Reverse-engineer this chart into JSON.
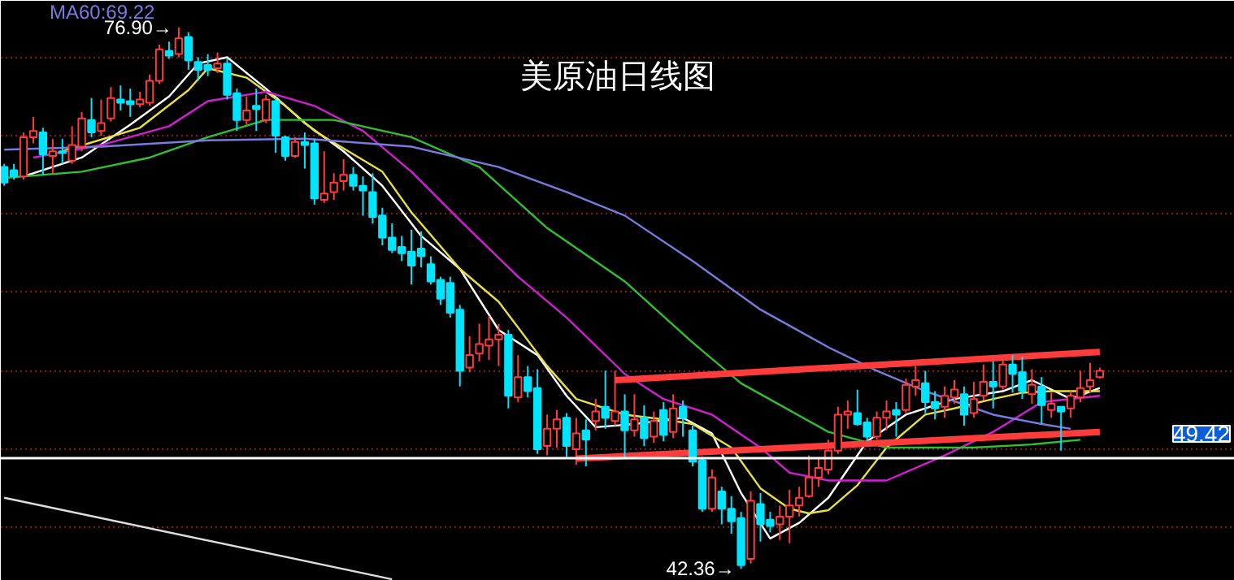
{
  "chart_data": {
    "type": "candlestick",
    "title": "美原油日线图",
    "categories": [
      null,
      null,
      null,
      null,
      null,
      null,
      null,
      null,
      null,
      null,
      null,
      null,
      null,
      null,
      null,
      null,
      null,
      null,
      null,
      null,
      null,
      null,
      null,
      null,
      null,
      null,
      null,
      null,
      null,
      null,
      null,
      null,
      null,
      null,
      null,
      null,
      null,
      null,
      null,
      null,
      null,
      null,
      null,
      null,
      null,
      null,
      null,
      null,
      null,
      null,
      null,
      null,
      null,
      null,
      null,
      null,
      null,
      null,
      null,
      null,
      null,
      null,
      null,
      null,
      null,
      null,
      null,
      null,
      null,
      null,
      null,
      null,
      null,
      null,
      null,
      null,
      null,
      null,
      null,
      null,
      null,
      null,
      null,
      null,
      null,
      null,
      null,
      null,
      null,
      null,
      null,
      null,
      null,
      null,
      null,
      null,
      null,
      null,
      null,
      null,
      null,
      null,
      null,
      null,
      null,
      null,
      null,
      null,
      null,
      null,
      null,
      null,
      null,
      null
    ],
    "ohlc": [
      [
        68.0,
        68.2,
        66.8,
        67.0
      ],
      [
        67.8,
        68.2,
        67.2,
        67.4
      ],
      [
        67.4,
        70.2,
        67.2,
        69.9
      ],
      [
        69.9,
        71.2,
        69.5,
        70.3
      ],
      [
        70.2,
        70.5,
        67.5,
        68.8
      ],
      [
        68.7,
        69.8,
        67.6,
        69.0
      ],
      [
        69.0,
        69.8,
        68.2,
        68.9
      ],
      [
        68.4,
        70.6,
        68.2,
        69.4
      ],
      [
        69.3,
        71.5,
        69.0,
        71.1
      ],
      [
        71.0,
        72.4,
        69.9,
        70.2
      ],
      [
        70.3,
        72.3,
        70.0,
        70.8
      ],
      [
        71.1,
        73.1,
        70.9,
        72.4
      ],
      [
        72.3,
        73.2,
        71.6,
        72.1
      ],
      [
        72.2,
        73.0,
        71.2,
        72.0
      ],
      [
        72.0,
        72.8,
        71.8,
        72.3
      ],
      [
        72.1,
        73.9,
        71.9,
        73.5
      ],
      [
        73.5,
        75.8,
        73.3,
        75.5
      ],
      [
        75.4,
        76.0,
        74.9,
        75.1
      ],
      [
        75.2,
        76.9,
        75.0,
        76.2
      ],
      [
        76.3,
        76.6,
        74.2,
        74.8
      ],
      [
        74.7,
        75.0,
        73.5,
        74.2
      ],
      [
        74.5,
        75.2,
        73.8,
        74.2
      ],
      [
        74.3,
        75.3,
        74.0,
        74.6
      ],
      [
        74.6,
        74.9,
        72.3,
        72.6
      ],
      [
        72.7,
        73.0,
        70.3,
        71.0
      ],
      [
        71.0,
        72.5,
        70.7,
        71.6
      ],
      [
        71.9,
        73.0,
        70.3,
        71.7
      ],
      [
        71.0,
        72.6,
        70.8,
        72.3
      ],
      [
        72.2,
        72.4,
        68.9,
        70.0
      ],
      [
        69.9,
        70.0,
        68.4,
        68.7
      ],
      [
        68.7,
        69.9,
        68.6,
        69.6
      ],
      [
        69.6,
        70.2,
        67.9,
        69.4
      ],
      [
        69.5,
        69.8,
        65.6,
        66.0
      ],
      [
        65.9,
        69.0,
        65.7,
        66.3
      ],
      [
        66.4,
        67.6,
        65.9,
        67.0
      ],
      [
        67.1,
        68.5,
        66.5,
        67.5
      ],
      [
        67.5,
        68.0,
        66.5,
        66.8
      ],
      [
        66.8,
        67.4,
        64.9,
        66.5
      ],
      [
        66.4,
        67.6,
        64.4,
        64.8
      ],
      [
        64.9,
        65.4,
        63.0,
        63.5
      ],
      [
        63.5,
        64.4,
        62.5,
        62.7
      ],
      [
        62.9,
        63.6,
        62.0,
        62.5
      ],
      [
        62.6,
        64.0,
        60.5,
        61.7
      ],
      [
        62.8,
        63.9,
        61.6,
        62.3
      ],
      [
        61.8,
        62.3,
        60.5,
        60.7
      ],
      [
        60.8,
        61.0,
        59.2,
        59.6
      ],
      [
        60.6,
        61.0,
        58.4,
        58.7
      ],
      [
        58.9,
        59.2,
        54.0,
        55.0
      ],
      [
        55.2,
        57.2,
        54.9,
        56.0
      ],
      [
        56.1,
        58.0,
        55.6,
        56.7
      ],
      [
        56.6,
        58.5,
        55.7,
        57.0
      ],
      [
        57.0,
        58.0,
        55.3,
        57.3
      ],
      [
        57.3,
        57.6,
        52.6,
        53.4
      ],
      [
        53.3,
        56.0,
        53.0,
        54.6
      ],
      [
        54.6,
        55.3,
        53.3,
        53.7
      ],
      [
        53.9,
        55.1,
        49.7,
        50.0
      ],
      [
        50.2,
        52.2,
        49.6,
        51.3
      ],
      [
        51.3,
        52.5,
        50.1,
        51.9
      ],
      [
        52.0,
        52.3,
        49.5,
        50.2
      ],
      [
        50.0,
        52.0,
        49.0,
        51.0
      ],
      [
        51.2,
        51.9,
        48.9,
        50.6
      ],
      [
        51.8,
        53.2,
        51.2,
        52.4
      ],
      [
        52.7,
        55.0,
        51.3,
        52.0
      ],
      [
        51.8,
        55.0,
        51.5,
        52.4
      ],
      [
        52.4,
        53.5,
        49.5,
        51.2
      ],
      [
        51.2,
        53.5,
        50.8,
        51.9
      ],
      [
        52.0,
        52.8,
        50.2,
        50.7
      ],
      [
        50.8,
        52.4,
        50.4,
        51.8
      ],
      [
        52.5,
        53.0,
        50.5,
        50.9
      ],
      [
        51.1,
        53.5,
        50.7,
        52.6
      ],
      [
        52.7,
        53.1,
        50.8,
        52.0
      ],
      [
        51.2,
        51.5,
        48.9,
        49.2
      ],
      [
        49.3,
        49.5,
        46.0,
        46.2
      ],
      [
        46.2,
        48.7,
        46.0,
        48.2
      ],
      [
        47.3,
        47.6,
        45.2,
        46.2
      ],
      [
        46.2,
        47.0,
        44.6,
        45.4
      ],
      [
        45.6,
        46.0,
        42.36,
        42.6
      ],
      [
        43.0,
        47.3,
        42.7,
        46.7
      ],
      [
        46.5,
        47.2,
        44.1,
        45.2
      ],
      [
        45.5,
        46.0,
        44.7,
        45.1
      ],
      [
        45.2,
        46.4,
        44.2,
        45.7
      ],
      [
        45.7,
        47.4,
        44.0,
        46.4
      ],
      [
        46.4,
        47.6,
        45.7,
        46.9
      ],
      [
        47.0,
        49.6,
        46.9,
        48.2
      ],
      [
        48.2,
        49.4,
        47.6,
        48.8
      ],
      [
        48.7,
        50.6,
        48.4,
        49.9
      ],
      [
        49.9,
        52.7,
        49.7,
        52.2
      ],
      [
        52.2,
        53.1,
        51.3,
        52.4
      ],
      [
        52.3,
        53.8,
        51.5,
        51.6
      ],
      [
        51.7,
        52.0,
        50.5,
        50.8
      ],
      [
        50.8,
        52.4,
        50.6,
        52.0
      ],
      [
        52.0,
        53.1,
        51.2,
        52.4
      ],
      [
        52.5,
        53.0,
        50.8,
        52.2
      ],
      [
        52.5,
        54.5,
        52.3,
        54.1
      ],
      [
        54.0,
        55.3,
        53.4,
        54.4
      ],
      [
        54.2,
        55.0,
        52.3,
        53.0
      ],
      [
        53.0,
        53.7,
        51.9,
        52.6
      ],
      [
        52.7,
        54.0,
        52.0,
        53.4
      ],
      [
        53.3,
        54.4,
        52.9,
        53.8
      ],
      [
        53.5,
        54.0,
        51.5,
        52.2
      ],
      [
        52.3,
        54.3,
        52.0,
        53.2
      ],
      [
        53.4,
        55.4,
        53.1,
        54.3
      ],
      [
        54.3,
        55.6,
        52.6,
        54.0
      ],
      [
        54.0,
        55.8,
        53.8,
        55.4
      ],
      [
        55.4,
        56.0,
        53.6,
        54.8
      ],
      [
        54.9,
        55.9,
        53.2,
        53.7
      ],
      [
        53.5,
        55.1,
        52.9,
        54.1
      ],
      [
        54.0,
        54.6,
        51.6,
        52.8
      ],
      [
        52.5,
        53.6,
        52.0,
        52.9
      ],
      [
        52.7,
        52.7,
        49.9,
        52.4
      ],
      [
        52.6,
        53.7,
        52.0,
        53.4
      ],
      [
        53.3,
        55.0,
        53.0,
        53.9
      ],
      [
        54.0,
        55.5,
        53.6,
        54.4
      ],
      [
        54.6,
        55.2,
        54.5,
        55.0
      ]
    ],
    "series": [
      {
        "type": "line",
        "color": "#ffffff",
        "values": [
          null,
          null,
          67.4,
          null,
          null,
          null,
          null,
          null,
          68.6,
          null,
          null,
          null,
          null,
          70.7,
          null,
          null,
          null,
          72.5,
          null,
          null,
          74.6,
          null,
          null,
          75.0,
          null,
          null,
          null,
          73.0,
          null,
          null,
          null,
          70.8,
          null,
          null,
          null,
          69.0,
          null,
          null,
          null,
          66.8,
          null,
          null,
          null,
          63.6,
          null,
          null,
          null,
          61.5,
          null,
          null,
          null,
          57.6,
          null,
          null,
          null,
          56.0,
          null,
          null,
          53.4,
          null,
          null,
          51.4,
          null,
          null,
          null,
          51.6,
          null,
          null,
          null,
          null,
          52.0,
          null,
          null,
          51.0,
          null,
          null,
          47.2,
          null,
          null,
          44.3,
          null,
          null,
          45.3,
          null,
          null,
          46.9,
          null,
          null,
          null,
          50.5,
          null,
          null,
          null,
          52.2,
          null,
          null,
          null,
          null,
          53.2,
          null,
          null,
          null,
          null,
          53.7,
          null,
          null,
          54.4,
          null,
          null,
          null,
          53.2,
          null,
          null,
          53.9
        ]
      },
      {
        "type": "line",
        "color": "#e8e040",
        "values": [
          null,
          null,
          null,
          null,
          null,
          null,
          69.0,
          null,
          null,
          null,
          null,
          null,
          null,
          null,
          70.5,
          null,
          null,
          null,
          null,
          72.9,
          null,
          74.3,
          null,
          null,
          null,
          73.7,
          null,
          null,
          null,
          71.9,
          null,
          null,
          70.3,
          null,
          null,
          null,
          null,
          null,
          null,
          67.7,
          null,
          null,
          65.1,
          null,
          null,
          null,
          null,
          61.5,
          null,
          null,
          null,
          59.4,
          null,
          null,
          null,
          null,
          55.3,
          null,
          null,
          53.2,
          null,
          null,
          null,
          null,
          52.2,
          null,
          null,
          null,
          51.9,
          null,
          null,
          51.6,
          null,
          null,
          null,
          50.1,
          null,
          null,
          47.5,
          null,
          null,
          46.2,
          null,
          45.9,
          null,
          46.1,
          null,
          null,
          47.7,
          null,
          null,
          50.1,
          null,
          null,
          null,
          52.2,
          null,
          null,
          52.6,
          null,
          null,
          null,
          53.2,
          null,
          null,
          53.6,
          null,
          null,
          53.7,
          null,
          null,
          null,
          null,
          53.7
        ]
      },
      {
        "type": "line",
        "color": "#d020d0",
        "values": [
          null,
          null,
          null,
          68.6,
          null,
          null,
          null,
          null,
          null,
          null,
          69.4,
          null,
          null,
          null,
          null,
          null,
          null,
          70.6,
          null,
          null,
          null,
          72.2,
          null,
          null,
          null,
          null,
          null,
          72.8,
          null,
          null,
          null,
          null,
          71.9,
          null,
          null,
          null,
          null,
          70.3,
          null,
          null,
          null,
          null,
          67.7,
          null,
          null,
          null,
          null,
          64.6,
          null,
          null,
          null,
          null,
          null,
          61.0,
          null,
          null,
          null,
          null,
          58.4,
          null,
          null,
          null,
          null,
          null,
          54.8,
          null,
          null,
          null,
          53.2,
          null,
          null,
          null,
          null,
          52.2,
          null,
          null,
          null,
          null,
          50.1,
          null,
          null,
          48.5,
          null,
          null,
          null,
          48.0,
          null,
          null,
          null,
          null,
          null,
          48.0,
          null,
          null,
          null,
          null,
          null,
          49.6,
          null,
          null,
          null,
          null,
          51.1,
          null,
          null,
          null,
          null,
          53.0,
          null,
          null,
          null,
          null,
          null,
          53.4
        ]
      },
      {
        "type": "line",
        "color": "#30c030",
        "values": [
          67.3,
          null,
          null,
          null,
          null,
          null,
          null,
          null,
          67.7,
          null,
          null,
          null,
          null,
          null,
          null,
          68.6,
          null,
          null,
          null,
          null,
          null,
          69.9,
          null,
          null,
          null,
          null,
          null,
          71.0,
          null,
          null,
          null,
          null,
          null,
          null,
          71.0,
          null,
          null,
          null,
          null,
          null,
          null,
          null,
          69.9,
          null,
          null,
          null,
          null,
          null,
          null,
          68.0,
          null,
          null,
          null,
          null,
          null,
          null,
          64.1,
          null,
          null,
          null,
          null,
          null,
          null,
          null,
          60.7,
          null,
          null,
          null,
          null,
          null,
          null,
          56.8,
          null,
          null,
          null,
          null,
          54.2,
          null,
          null,
          null,
          null,
          null,
          null,
          null,
          null,
          51.1,
          null,
          null,
          null,
          null,
          null,
          50.1,
          null,
          null,
          null,
          null,
          null,
          null,
          null,
          null,
          50.1,
          null,
          null,
          null,
          null,
          null,
          50.3,
          null,
          null,
          null,
          null,
          50.6,
          null,
          null
        ]
      },
      {
        "type": "line",
        "name": "MA60:69.22",
        "color": "#7a7ae0",
        "values": [
          69.1,
          null,
          null,
          null,
          null,
          null,
          null,
          null,
          null,
          null,
          69.3,
          null,
          null,
          null,
          null,
          null,
          null,
          null,
          null,
          null,
          null,
          69.7,
          null,
          null,
          null,
          null,
          null,
          null,
          null,
          null,
          null,
          69.8,
          null,
          null,
          null,
          null,
          null,
          null,
          null,
          null,
          null,
          null,
          69.3,
          null,
          null,
          null,
          null,
          null,
          null,
          null,
          null,
          68.0,
          null,
          null,
          null,
          null,
          null,
          null,
          66.4,
          null,
          null,
          null,
          null,
          null,
          64.9,
          null,
          null,
          null,
          null,
          null,
          null,
          62.0,
          null,
          null,
          null,
          null,
          null,
          null,
          58.9,
          null,
          null,
          null,
          null,
          null,
          null,
          56.5,
          null,
          null,
          null,
          null,
          55.0,
          null,
          null,
          null,
          null,
          53.7,
          null,
          null,
          null,
          null,
          null,
          null,
          52.2,
          null,
          null,
          null,
          null,
          51.6,
          null,
          null,
          51.3,
          null,
          null,
          null
        ]
      },
      {
        "type": "line",
        "color": "#ff3c3c",
        "values": [
          null,
          null,
          null,
          null,
          null,
          null,
          null,
          null,
          null,
          null,
          null,
          null,
          null,
          null,
          null,
          null,
          null,
          null,
          null,
          null,
          null,
          null,
          null,
          null,
          null,
          null,
          null,
          null,
          null,
          null,
          null,
          null,
          null,
          null,
          null,
          null,
          null,
          null,
          null,
          null,
          null,
          null,
          null,
          null,
          null,
          null,
          null,
          null,
          null,
          null,
          null,
          null,
          null,
          null,
          null,
          null,
          null,
          null,
          null,
          null,
          null,
          null,
          null,
          54.4,
          null,
          null,
          null,
          null,
          null,
          null,
          null,
          null,
          null,
          null,
          null,
          null,
          null,
          null,
          null,
          null,
          null,
          null,
          null,
          null,
          null,
          null,
          null,
          null,
          null,
          null,
          null,
          null,
          null,
          null,
          null,
          null,
          null,
          null,
          null,
          null,
          null,
          null,
          null,
          null,
          null,
          null,
          null,
          null,
          null,
          null,
          null,
          null,
          null,
          56.2
        ]
      },
      {
        "type": "line",
        "color": "#ff3c3c",
        "values": [
          null,
          null,
          null,
          null,
          null,
          null,
          null,
          null,
          null,
          null,
          null,
          null,
          null,
          null,
          null,
          null,
          null,
          null,
          null,
          null,
          null,
          null,
          null,
          null,
          null,
          null,
          null,
          null,
          null,
          null,
          null,
          null,
          null,
          null,
          null,
          null,
          null,
          null,
          null,
          null,
          null,
          null,
          null,
          null,
          null,
          null,
          null,
          null,
          null,
          null,
          null,
          null,
          null,
          null,
          null,
          null,
          null,
          null,
          null,
          49.4,
          null,
          null,
          null,
          null,
          null,
          null,
          null,
          null,
          null,
          null,
          null,
          null,
          null,
          null,
          null,
          null,
          null,
          null,
          null,
          null,
          null,
          null,
          null,
          null,
          null,
          null,
          null,
          null,
          null,
          null,
          null,
          null,
          null,
          null,
          null,
          null,
          null,
          null,
          null,
          null,
          null,
          null,
          null,
          null,
          null,
          null,
          null,
          null,
          null,
          null,
          null,
          null,
          null,
          51.1
        ]
      },
      {
        "type": "line",
        "color": "#dddddd",
        "values": [
          46.9,
          null,
          null,
          null,
          null,
          null,
          null,
          null,
          null,
          null,
          null,
          null,
          null,
          null,
          null,
          null,
          null,
          null,
          null,
          null,
          null,
          null,
          null,
          null,
          null,
          null,
          null,
          null,
          null,
          null,
          null,
          null,
          null,
          null,
          null,
          null,
          null,
          null,
          null,
          null,
          41.7,
          null,
          null,
          null,
          null,
          null,
          null,
          null,
          null,
          null,
          null,
          null,
          null,
          null,
          null,
          null,
          null,
          null,
          null,
          null,
          null,
          null,
          null,
          null,
          null,
          null,
          null,
          null,
          null,
          null,
          null,
          null,
          null,
          null,
          null,
          null,
          null,
          null,
          null,
          null,
          null,
          null,
          null,
          null,
          null,
          null,
          null,
          null,
          null,
          null,
          null,
          null,
          null,
          null,
          null,
          null,
          null,
          null,
          null,
          null,
          null,
          null,
          null,
          null,
          null,
          null,
          null,
          null,
          null,
          null,
          null,
          null,
          null,
          null
        ]
      }
    ],
    "ylim": [
      41.6,
      78.6
    ],
    "yticks": [
      {
        "value": 45,
        "label": null
      },
      {
        "value": 50,
        "label": null
      },
      {
        "value": 55,
        "label": null
      },
      {
        "value": 60,
        "label": null
      },
      {
        "value": 65,
        "label": null
      },
      {
        "value": 70,
        "label": null
      },
      {
        "value": 75,
        "label": null
      }
    ],
    "grid": "y",
    "tick_labels": false,
    "ref_lines": [
      {
        "axis": "y",
        "value": 49.42,
        "label": "49.42",
        "color": "#ffffff"
      }
    ],
    "annotations": [
      "76.90→",
      "42.36→"
    ]
  }
}
